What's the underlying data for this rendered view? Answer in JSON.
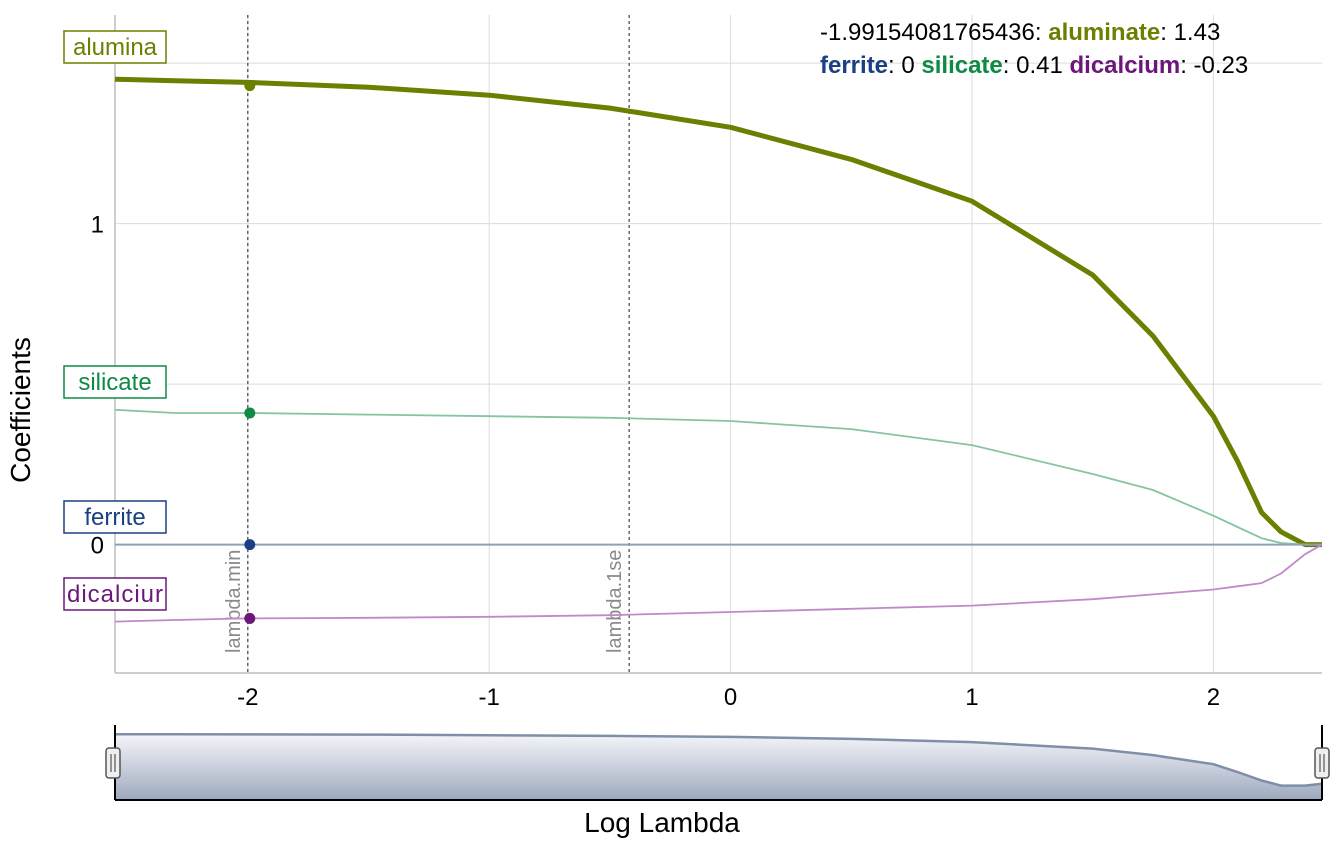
{
  "chart_data": {
    "type": "line",
    "xlabel": "Log Lambda",
    "ylabel": "Coefficients",
    "xlim": [
      -2.55,
      2.45
    ],
    "ylim": [
      -0.4,
      1.65
    ],
    "x_ticks": [
      -2,
      -1,
      0,
      1,
      2
    ],
    "y_ticks": [
      0,
      1
    ],
    "grid": true,
    "x": [
      -2.55,
      -2.3,
      -2.0,
      -1.5,
      -1.0,
      -0.5,
      0.0,
      0.5,
      1.0,
      1.5,
      1.75,
      2.0,
      2.1,
      2.2,
      2.28,
      2.38,
      2.45
    ],
    "series": [
      {
        "name": "aluminate",
        "label": "alumina",
        "color": "#6b7f00",
        "width": 5,
        "values": [
          1.45,
          1.445,
          1.44,
          1.425,
          1.4,
          1.36,
          1.3,
          1.2,
          1.07,
          0.84,
          0.65,
          0.4,
          0.26,
          0.1,
          0.04,
          0.0,
          0.0
        ]
      },
      {
        "name": "silicate",
        "label": "silicate",
        "color": "#86c5a0",
        "marker_color": "#0d8a44",
        "width": 1.8,
        "values": [
          0.42,
          0.41,
          0.41,
          0.405,
          0.4,
          0.395,
          0.385,
          0.36,
          0.31,
          0.22,
          0.17,
          0.09,
          0.055,
          0.02,
          0.005,
          0.0,
          0.0
        ]
      },
      {
        "name": "ferrite",
        "label": "ferrite",
        "color": "#8fa0b8",
        "marker_color": "#1a3f82",
        "width": 2,
        "values": [
          0,
          0,
          0,
          0,
          0,
          0,
          0,
          0,
          0,
          0,
          0,
          0,
          0,
          0,
          0,
          0,
          0
        ]
      },
      {
        "name": "dicalcium",
        "label": "dicalciur",
        "color": "#c08ac8",
        "marker_color": "#6b177a",
        "width": 1.8,
        "values": [
          -0.24,
          -0.235,
          -0.23,
          -0.228,
          -0.225,
          -0.22,
          -0.21,
          -0.2,
          -0.19,
          -0.17,
          -0.155,
          -0.14,
          -0.13,
          -0.12,
          -0.09,
          -0.03,
          0.0
        ]
      }
    ],
    "vlines": [
      {
        "x": -2.0,
        "label": "lambda.min"
      },
      {
        "x": -0.42,
        "label": "lambda.1se"
      }
    ],
    "hover": {
      "x_value": "-1.99154081765436",
      "entries": [
        {
          "name": "aluminate",
          "value": "1.43"
        },
        {
          "name": "ferrite",
          "value": "0"
        },
        {
          "name": "silicate",
          "value": "0.41"
        },
        {
          "name": "dicalcium",
          "value": "-0.23"
        }
      ]
    },
    "range_selector": {
      "color": "#7f8fa8",
      "values": [
        0.98,
        0.98,
        0.978,
        0.975,
        0.965,
        0.955,
        0.94,
        0.91,
        0.86,
        0.76,
        0.66,
        0.52,
        0.4,
        0.27,
        0.19,
        0.19,
        0.22
      ]
    }
  }
}
